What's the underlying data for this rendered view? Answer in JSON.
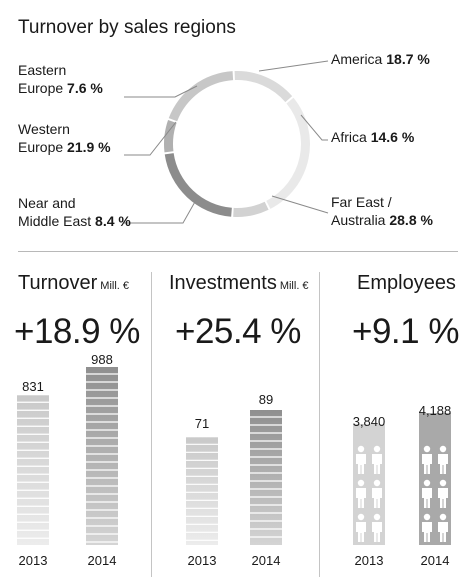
{
  "chart_data": [
    {
      "type": "pie",
      "variant": "donut",
      "title": "Turnover by sales regions",
      "unit": "%",
      "slices": [
        {
          "label": "America",
          "value": 18.7,
          "display": "18.7 %",
          "color": "#c7c7c7"
        },
        {
          "label": "Africa",
          "value": 14.6,
          "display": "14.6 %",
          "color": "#dadada"
        },
        {
          "label": "Far East / Australia",
          "value": 28.8,
          "display": "28.8 %",
          "color": "#e9e9e9"
        },
        {
          "label": "Near and Middle East",
          "value": 8.4,
          "display": "8.4 %",
          "color": "#d2d2d2"
        },
        {
          "label": "Western Europe",
          "value": 21.9,
          "display": "21.9 %",
          "color": "#8c8c8c"
        },
        {
          "label": "Eastern Europe",
          "value": 7.6,
          "display": "7.6 %",
          "color": "#b0b0b0"
        }
      ]
    },
    {
      "type": "bar",
      "title": "Turnover",
      "unit": "Mill. €",
      "change": "+18.9 %",
      "categories": [
        "2013",
        "2014"
      ],
      "values": [
        831,
        988
      ],
      "value_labels": [
        "831",
        "988"
      ]
    },
    {
      "type": "bar",
      "title": "Investments",
      "unit": "Mill. €",
      "change": "+25.4 %",
      "categories": [
        "2013",
        "2014"
      ],
      "values": [
        71,
        89
      ],
      "value_labels": [
        "71",
        "89"
      ]
    },
    {
      "type": "bar",
      "title": "Employees",
      "unit": "",
      "change": "+9.1 %",
      "categories": [
        "2013",
        "2014"
      ],
      "values": [
        3840,
        4188
      ],
      "value_labels": [
        "3,840",
        "4,188"
      ],
      "pictogram": "person-icon"
    }
  ],
  "labels": {
    "eastern": {
      "line1": "Eastern",
      "line2": "Europe"
    },
    "western": {
      "line1": "Western",
      "line2": "Europe"
    },
    "near": {
      "line1": "Near and",
      "line2": "Middle East"
    },
    "america": {
      "name": "America"
    },
    "africa": {
      "name": "Africa"
    },
    "fareast": {
      "line1": "Far East /",
      "line2": "Australia"
    }
  },
  "colors": {
    "bar_2013_light": "#ececec",
    "bar_2013_dark": "#c9c9c9",
    "bar_2014_light": "#d4d4d4",
    "bar_2014_dark": "#8f8f8f",
    "emp_2013": "#d3d3d3",
    "emp_2014": "#a9a9a9",
    "leader": "#8a8a8a"
  }
}
